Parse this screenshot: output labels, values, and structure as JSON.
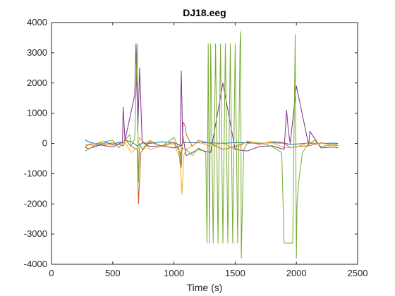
{
  "chart_data": {
    "type": "line",
    "title": "DJ18.eeg",
    "xlabel": "Time (s)",
    "ylabel": "",
    "xlim": [
      0,
      2500
    ],
    "ylim": [
      -4000,
      4000
    ],
    "xticks": [
      0,
      500,
      1000,
      1500,
      2000,
      2500
    ],
    "yticks": [
      -4000,
      -3000,
      -2000,
      -1000,
      0,
      1000,
      2000,
      3000,
      4000
    ],
    "grid": false,
    "legend": "none",
    "series": [
      {
        "color": "#0072BD",
        "x": [
          275,
          300,
          350,
          400,
          450,
          500,
          550,
          590,
          600,
          650,
          700,
          750,
          800,
          900,
          1000,
          1060,
          1075,
          1100,
          1200,
          1300,
          1400,
          1500,
          1600,
          1700,
          1800,
          1900,
          1950,
          2000,
          2100,
          2200,
          2300,
          2340
        ],
        "y": [
          120,
          60,
          0,
          -20,
          30,
          -30,
          40,
          30,
          100,
          60,
          -80,
          20,
          0,
          50,
          30,
          -80,
          40,
          30,
          20,
          20,
          0,
          30,
          20,
          0,
          20,
          10,
          -30,
          -20,
          10,
          0,
          10,
          0
        ]
      },
      {
        "color": "#D95319",
        "x": [
          275,
          300,
          400,
          500,
          590,
          600,
          650,
          700,
          710,
          730,
          800,
          900,
          1000,
          1050,
          1060,
          1075,
          1090,
          1100,
          1150,
          1200,
          1300,
          1400,
          1500,
          1600,
          1700,
          1800,
          1900,
          1950,
          2000,
          2100,
          2200,
          2300,
          2340
        ],
        "y": [
          -100,
          -50,
          -60,
          20,
          -80,
          150,
          -100,
          -200,
          -2000,
          -300,
          50,
          -80,
          40,
          -300,
          -800,
          700,
          600,
          300,
          -100,
          100,
          0,
          -200,
          -100,
          50,
          -30,
          60,
          20,
          -150,
          -100,
          -80,
          20,
          -60,
          -20
        ]
      },
      {
        "color": "#EDB120",
        "x": [
          275,
          300,
          400,
          500,
          600,
          650,
          700,
          720,
          800,
          900,
          1000,
          1050,
          1065,
          1080,
          1100,
          1200,
          1300,
          1400,
          1500,
          1600,
          1700,
          1800,
          1900,
          2000,
          2100,
          2200,
          2300,
          2340
        ],
        "y": [
          -50,
          -20,
          20,
          -60,
          40,
          -300,
          -150,
          200,
          -200,
          -100,
          0,
          -500,
          -1700,
          -400,
          -200,
          50,
          -100,
          20,
          -200,
          80,
          0,
          20,
          -150,
          -120,
          30,
          0,
          -40,
          -20
        ]
      },
      {
        "color": "#7E2F8E",
        "x": [
          275,
          300,
          400,
          500,
          580,
          585,
          600,
          680,
          690,
          705,
          720,
          740,
          800,
          900,
          1000,
          1050,
          1060,
          1070,
          1100,
          1200,
          1300,
          1400,
          1500,
          1600,
          1700,
          1800,
          1900,
          1920,
          1935,
          1950,
          2000,
          2100,
          2110,
          2200,
          2300,
          2340
        ],
        "y": [
          -120,
          -180,
          -50,
          -120,
          50,
          1200,
          100,
          1600,
          3300,
          400,
          2500,
          50,
          -100,
          -80,
          -150,
          -100,
          2400,
          300,
          -400,
          -200,
          -300,
          2000,
          -200,
          -250,
          -100,
          -80,
          -200,
          1100,
          400,
          0,
          1900,
          -50,
          400,
          -150,
          -120,
          -150
        ]
      },
      {
        "color": "#77AC30",
        "x": [
          275,
          300,
          400,
          500,
          550,
          600,
          640,
          650,
          680,
          700,
          710,
          720,
          740,
          800,
          900,
          1000,
          1040,
          1050,
          1060,
          1100,
          1150,
          1200,
          1260,
          1270,
          1280,
          1290,
          1300,
          1320,
          1340,
          1360,
          1380,
          1400,
          1420,
          1440,
          1460,
          1480,
          1500,
          1520,
          1540,
          1545,
          1550,
          1560,
          1570,
          1600,
          1700,
          1800,
          1880,
          1900,
          1920,
          1950,
          1970,
          1990,
          2000,
          2005,
          2020,
          2050,
          2100,
          2150,
          2200,
          2300,
          2340
        ],
        "y": [
          -250,
          -200,
          50,
          100,
          -150,
          100,
          300,
          -80,
          150,
          3300,
          -1300,
          0,
          -200,
          100,
          -100,
          200,
          -150,
          -700,
          -150,
          -200,
          -400,
          -150,
          -300,
          -3300,
          3300,
          -3300,
          3300,
          -3300,
          3300,
          -3300,
          3300,
          -3300,
          3300,
          -3300,
          3300,
          -3300,
          3300,
          -3300,
          3300,
          3700,
          -3800,
          -1800,
          -200,
          0,
          20,
          -100,
          -300,
          -3300,
          -3300,
          -3300,
          -3300,
          3600,
          -3800,
          -2000,
          -1200,
          -300,
          0,
          100,
          -100,
          -50,
          -80
        ]
      }
    ]
  }
}
